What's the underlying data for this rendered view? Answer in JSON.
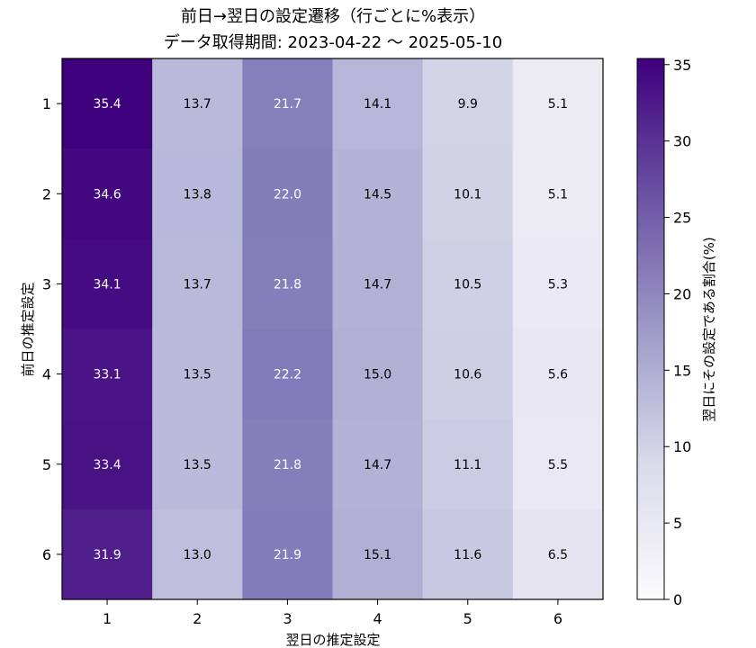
{
  "chart_data": {
    "type": "heatmap",
    "title": "前日→翌日の設定遷移（行ごとに%表示）",
    "subtitle": "データ取得期間: 2023-04-22 〜 2025-05-10",
    "xlabel": "翌日の推定設定",
    "ylabel": "前日の推定設定",
    "x_categories": [
      "1",
      "2",
      "3",
      "4",
      "5",
      "6"
    ],
    "y_categories": [
      "1",
      "2",
      "3",
      "4",
      "5",
      "6"
    ],
    "values": [
      [
        35.4,
        13.7,
        21.7,
        14.1,
        9.9,
        5.1
      ],
      [
        34.6,
        13.8,
        22.0,
        14.5,
        10.1,
        5.1
      ],
      [
        34.1,
        13.7,
        21.8,
        14.7,
        10.5,
        5.3
      ],
      [
        33.1,
        13.5,
        22.2,
        15.0,
        10.6,
        5.6
      ],
      [
        33.4,
        13.5,
        21.8,
        14.7,
        11.1,
        5.5
      ],
      [
        31.9,
        13.0,
        21.9,
        15.1,
        11.6,
        6.5
      ]
    ],
    "colorbar": {
      "label": "翌日にその設定である割合(%)",
      "min": 0,
      "max": 35.4,
      "ticks": [
        "0",
        "5",
        "10",
        "15",
        "20",
        "25",
        "30",
        "35"
      ],
      "colormap": "Purples"
    },
    "colors": {
      "low": "#fcfbfd",
      "high": "#3f007d"
    }
  }
}
